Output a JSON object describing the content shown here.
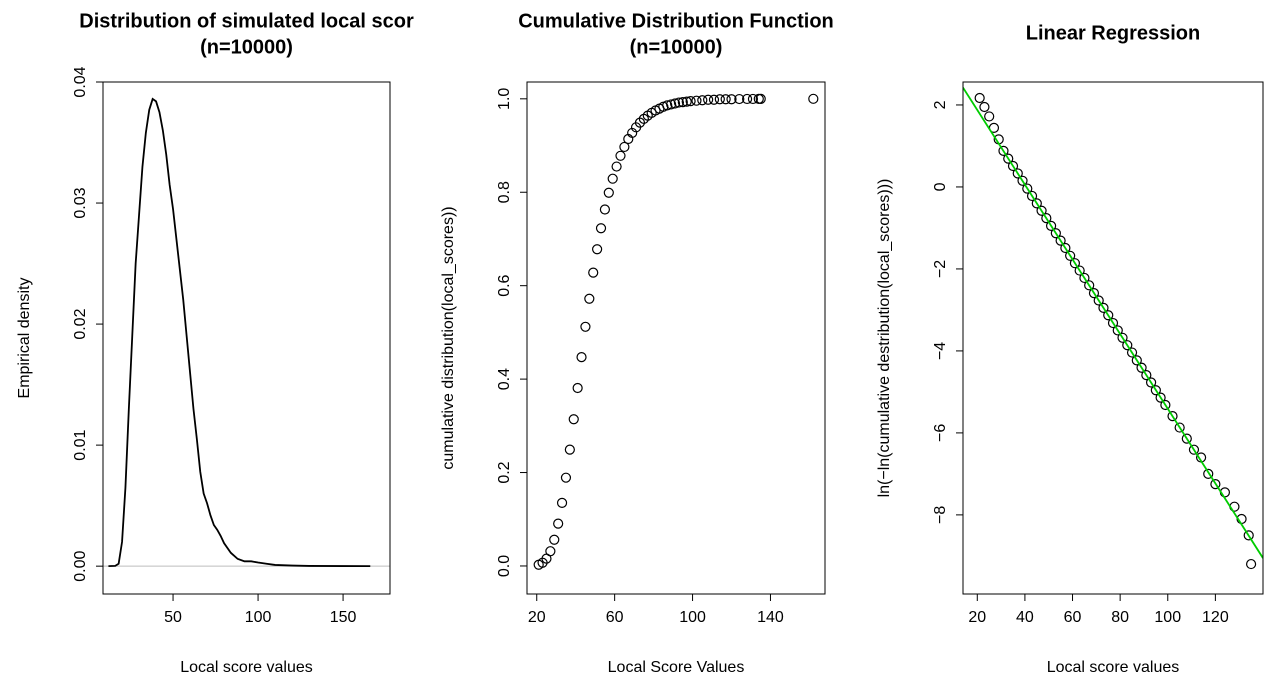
{
  "chart_data": [
    {
      "type": "line",
      "title": [
        "Distribution of simulated local scor",
        "(n=10000)"
      ],
      "xlabel": "Local score values",
      "ylabel": "Empirical density",
      "x": [
        12,
        16,
        18,
        20,
        22,
        24,
        26,
        28,
        30,
        32,
        34,
        36,
        38,
        40,
        42,
        44,
        46,
        48,
        50,
        52,
        54,
        56,
        58,
        60,
        62,
        64,
        66,
        68,
        70,
        72,
        74,
        76,
        78,
        80,
        84,
        88,
        92,
        96,
        100,
        105,
        110,
        120,
        130,
        150,
        166
      ],
      "values": [
        0,
        2e-05,
        0.0002,
        0.002,
        0.0065,
        0.013,
        0.019,
        0.025,
        0.029,
        0.033,
        0.0358,
        0.0377,
        0.0386,
        0.0384,
        0.0375,
        0.036,
        0.034,
        0.0315,
        0.0295,
        0.027,
        0.0245,
        0.022,
        0.019,
        0.016,
        0.013,
        0.0105,
        0.0078,
        0.006,
        0.0052,
        0.0042,
        0.0034,
        0.003,
        0.0025,
        0.0019,
        0.0011,
        0.0006,
        0.0004,
        0.0004,
        0.0003,
        0.0002,
        0.0001,
        5e-05,
        2e-05,
        1e-05,
        0
      ],
      "color": "#000000",
      "reference_line": 0,
      "reference_color": "#bebebe",
      "xlim": [
        8.8,
        177.6
      ],
      "ylim": [
        -0.0023,
        0.04
      ],
      "xticks": [
        50,
        100,
        150
      ],
      "yticks": [
        {
          "value": 0,
          "label": "0.00"
        },
        0.01,
        0.02,
        0.03,
        0.04
      ]
    },
    {
      "type": "scatter",
      "title": [
        "Cumulative Distribution Function",
        "(n=10000)"
      ],
      "xlabel": "Local Score Values",
      "ylabel": "cumulative distribution(local_scores))",
      "x": [
        21,
        23,
        25,
        27,
        29,
        31,
        33,
        35,
        37,
        39,
        41,
        43,
        45,
        47,
        49,
        51,
        53,
        55,
        57,
        59,
        61,
        63,
        65,
        67,
        69,
        71,
        73,
        75,
        77,
        79,
        81,
        83,
        85,
        87,
        89,
        91,
        93,
        95,
        97,
        99,
        102,
        105,
        108,
        111,
        114,
        117,
        120,
        124,
        128,
        131,
        134,
        135,
        162
      ],
      "values": [
        0.0026,
        0.0069,
        0.0158,
        0.0316,
        0.0561,
        0.0906,
        0.135,
        0.189,
        0.249,
        0.314,
        0.381,
        0.447,
        0.512,
        0.572,
        0.628,
        0.678,
        0.723,
        0.763,
        0.799,
        0.829,
        0.855,
        0.878,
        0.897,
        0.914,
        0.927,
        0.939,
        0.949,
        0.957,
        0.964,
        0.97,
        0.975,
        0.979,
        0.983,
        0.986,
        0.988,
        0.99,
        0.992,
        0.993,
        0.994,
        0.995,
        0.996,
        0.997,
        0.998,
        0.998,
        0.999,
        0.999,
        0.999,
        0.9995,
        0.9997,
        0.9997,
        0.9998,
        0.9999,
        1
      ],
      "color": "#000000",
      "xlim": [
        15,
        168
      ],
      "ylim": [
        -0.06,
        1.036
      ],
      "xticks": [
        20,
        60,
        100,
        140
      ],
      "yticks": [
        {
          "value": 0,
          "label": "0.0"
        },
        0.2,
        0.4,
        0.6,
        0.8,
        {
          "value": 1,
          "label": "1.0"
        }
      ]
    },
    {
      "type": "scatter",
      "title": [
        "Linear Regression"
      ],
      "xlabel": "Local score values",
      "ylabel": "ln(−ln(cumulative destribution(local_scores)))",
      "x": [
        21,
        23,
        25,
        27,
        29,
        31,
        33,
        35,
        37,
        39,
        41,
        43,
        45,
        47,
        49,
        51,
        53,
        55,
        57,
        59,
        61,
        63,
        65,
        67,
        69,
        71,
        73,
        75,
        77,
        79,
        81,
        83,
        85,
        87,
        89,
        91,
        93,
        95,
        97,
        99,
        102,
        105,
        108,
        111,
        114,
        117,
        120,
        124,
        128,
        131,
        134,
        135
      ],
      "values": [
        2.17,
        1.95,
        1.72,
        1.44,
        1.16,
        0.88,
        0.69,
        0.51,
        0.33,
        0.15,
        -0.04,
        -0.22,
        -0.4,
        -0.58,
        -0.76,
        -0.95,
        -1.13,
        -1.31,
        -1.49,
        -1.68,
        -1.86,
        -2.04,
        -2.22,
        -2.4,
        -2.59,
        -2.77,
        -2.95,
        -3.13,
        -3.32,
        -3.5,
        -3.68,
        -3.86,
        -4.04,
        -4.23,
        -4.41,
        -4.59,
        -4.77,
        -4.96,
        -5.14,
        -5.32,
        -5.59,
        -5.87,
        -6.14,
        -6.41,
        -6.6,
        -7.0,
        -7.25,
        -7.45,
        -7.8,
        -8.1,
        -8.5,
        -9.2
      ],
      "color": "#000000",
      "regression": {
        "intercept": 3.7,
        "slope": -0.0911,
        "color": "#00cc00"
      },
      "xlim": [
        14,
        140
      ],
      "ylim": [
        -9.93,
        2.56
      ],
      "xticks": [
        20,
        40,
        60,
        80,
        100,
        120
      ],
      "yticks": [
        {
          "value": -8,
          "label": "−8"
        },
        {
          "value": -6,
          "label": "−6"
        },
        {
          "value": -4,
          "label": "−4"
        },
        {
          "value": -2,
          "label": "−2"
        },
        0,
        2
      ]
    }
  ]
}
